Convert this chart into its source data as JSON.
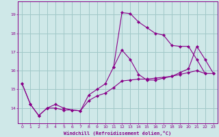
{
  "xlabel": "Windchill (Refroidissement éolien,°C)",
  "bg_color": "#cfe8e8",
  "grid_color": "#a0c8c8",
  "line_color": "#880088",
  "x_ticks": [
    0,
    1,
    2,
    3,
    4,
    5,
    6,
    7,
    8,
    9,
    10,
    11,
    12,
    13,
    14,
    15,
    16,
    17,
    18,
    19,
    20,
    21,
    22,
    23
  ],
  "y_ticks": [
    14,
    15,
    16,
    17,
    18,
    19
  ],
  "xlim": [
    -0.5,
    23.5
  ],
  "ylim": [
    13.2,
    19.7
  ],
  "series": [
    {
      "x": [
        0,
        1,
        2,
        3,
        4,
        5,
        6,
        7,
        8,
        9,
        10,
        11,
        12,
        13,
        14,
        15,
        16,
        17,
        18,
        19,
        20,
        21,
        22
      ],
      "y": [
        15.3,
        14.2,
        13.6,
        14.0,
        14.2,
        14.0,
        13.9,
        13.85,
        14.7,
        15.0,
        15.3,
        16.2,
        19.1,
        19.05,
        18.6,
        18.3,
        18.0,
        17.9,
        17.35,
        17.3,
        17.3,
        16.6,
        15.85
      ]
    },
    {
      "x": [
        0,
        1,
        2,
        3,
        4,
        5,
        6,
        7,
        8,
        9,
        10,
        11,
        12,
        13,
        14,
        15,
        16,
        17,
        18,
        19,
        20,
        21,
        22,
        23
      ],
      "y": [
        15.3,
        14.2,
        13.6,
        14.0,
        14.0,
        13.9,
        13.9,
        13.85,
        14.4,
        14.65,
        14.8,
        15.1,
        15.45,
        15.5,
        15.55,
        15.55,
        15.6,
        15.65,
        15.7,
        15.8,
        15.9,
        16.0,
        15.85,
        15.85
      ]
    },
    {
      "x": [
        11,
        12,
        13,
        14,
        15,
        16,
        17,
        18,
        19,
        20,
        21,
        22,
        23
      ],
      "y": [
        16.2,
        17.1,
        16.6,
        15.8,
        15.5,
        15.5,
        15.6,
        15.7,
        15.9,
        16.1,
        17.3,
        16.6,
        15.85
      ]
    }
  ]
}
